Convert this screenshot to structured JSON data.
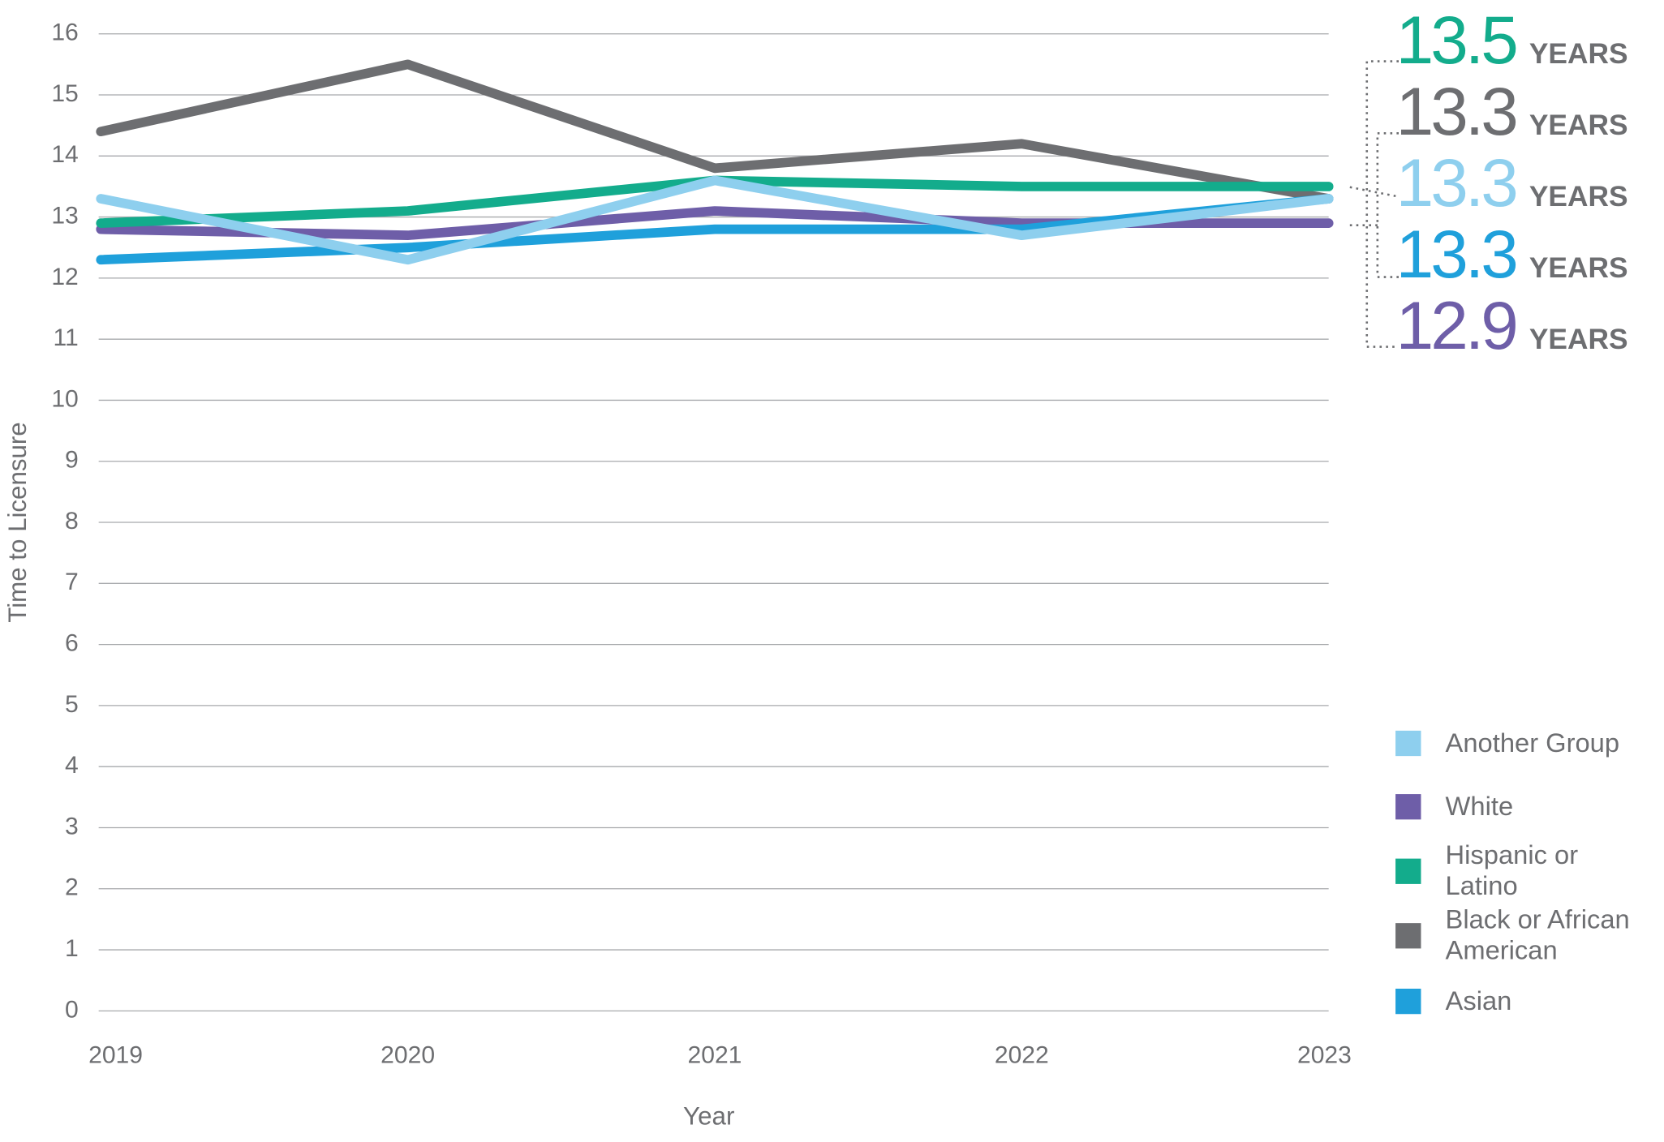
{
  "chart_data": {
    "type": "line",
    "x_label": "Year",
    "y_label": "Time to Licensure",
    "categories": [
      "2019",
      "2020",
      "2021",
      "2022",
      "2023"
    ],
    "ylim": [
      0,
      16
    ],
    "yticks": [
      0,
      1,
      2,
      3,
      4,
      5,
      6,
      7,
      8,
      9,
      10,
      11,
      12,
      13,
      14,
      15,
      16
    ],
    "grid": true,
    "legend_position": "right",
    "series": [
      {
        "name": "Another Group",
        "color": "#8ecfee",
        "values": [
          13.3,
          12.3,
          13.6,
          12.7,
          13.3
        ]
      },
      {
        "name": "White",
        "color": "#6e5ea8",
        "values": [
          12.8,
          12.7,
          13.1,
          12.9,
          12.9
        ]
      },
      {
        "name": "Hispanic or Latino",
        "color": "#13ac8c",
        "values": [
          12.9,
          13.1,
          13.6,
          13.5,
          13.5
        ]
      },
      {
        "name": "Black or African American",
        "color": "#6d6e71",
        "values": [
          14.4,
          15.5,
          13.8,
          14.2,
          13.3
        ]
      },
      {
        "name": "Asian",
        "color": "#1fa0db",
        "values": [
          12.3,
          12.5,
          12.8,
          12.8,
          13.3
        ]
      }
    ],
    "annotations": [
      {
        "text": "13.5",
        "unit": "YEARS",
        "color": "#13ac8c"
      },
      {
        "text": "13.3",
        "unit": "YEARS",
        "color": "#6d6e71"
      },
      {
        "text": "13.3",
        "unit": "YEARS",
        "color": "#8ecfee"
      },
      {
        "text": "13.3",
        "unit": "YEARS",
        "color": "#1fa0db"
      },
      {
        "text": "12.9",
        "unit": "YEARS",
        "color": "#6e5ea8"
      }
    ]
  }
}
